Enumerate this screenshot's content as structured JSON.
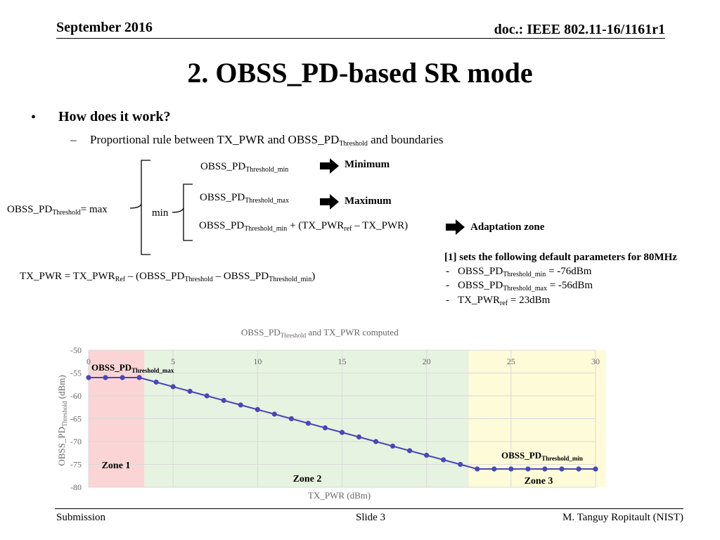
{
  "header": {
    "date": "September 2016",
    "doc": "doc.: IEEE 802.11-16/1161r1"
  },
  "title": "2. OBSS_PD-based SR mode",
  "bullets": {
    "level1": "How does it work?",
    "level2_dash": "–",
    "level2_pre": "Proportional rule between TX_PWR and OBSS_PD",
    "level2_sub": "Threshold",
    "level2_post": " and boundaries"
  },
  "formula": {
    "lhs_base": "OBSS_PD",
    "lhs_sub": "Threshold",
    "lhs_post": "= max",
    "min_label": "min",
    "term_min_base": "OBSS_PD",
    "term_min_sub": "Threshold_min",
    "term_max_base": "OBSS_PD",
    "term_max_sub": "Threshold_max",
    "term_adapt_base": "OBSS_PD",
    "term_adapt_sub": "Threshold_min",
    "term_adapt_mid": " + (TX_PWR",
    "term_adapt_sub2": "ref",
    "term_adapt_post": " – TX_PWR)",
    "label_min": "Minimum",
    "label_max": "Maximum",
    "label_adapt": "Adaptation zone"
  },
  "txpwr_formula": {
    "p1": "TX_PWR = TX_PWR",
    "s1": "Ref",
    "p2": " – (OBSS_PD",
    "s2": "Threshold",
    "p3": " – OBSS_PD",
    "s3": "Threshold_min",
    "p4": ")"
  },
  "defaults": {
    "heading": "[1] sets the following default parameters for 80MHz",
    "items": [
      {
        "dash": "-",
        "base": "OBSS_PD",
        "sub": "Threshold_min",
        "post": " = -76dBm"
      },
      {
        "dash": "-",
        "base": "OBSS_PD",
        "sub": "Threshold_max",
        "post": " = -56dBm"
      },
      {
        "dash": "-",
        "base": "TX_PWR",
        "sub": "ref",
        "post": " = 23dBm"
      }
    ]
  },
  "chart_data": {
    "type": "line",
    "title_base": "OBSS_PD",
    "title_sub": "Threshold",
    "title_post": " and TX_PWR computed",
    "xlabel": "TX_PWR (dBm)",
    "ylabel_base": "OBSS_PD",
    "ylabel_sub": "Threshold",
    "ylabel_post": " (dBm)",
    "xlim": [
      0,
      30
    ],
    "ylim": [
      -80,
      -50
    ],
    "x_ticks": [
      0,
      5,
      10,
      15,
      20,
      25,
      30
    ],
    "y_ticks": [
      -50,
      -55,
      -60,
      -65,
      -70,
      -75,
      -80
    ],
    "x": [
      0,
      1,
      2,
      3,
      4,
      5,
      6,
      7,
      8,
      9,
      10,
      11,
      12,
      13,
      14,
      15,
      16,
      17,
      18,
      19,
      20,
      21,
      22,
      23,
      24,
      25,
      26,
      27,
      28,
      29,
      30
    ],
    "values": [
      -56,
      -56,
      -56,
      -56,
      -57,
      -58,
      -59,
      -60,
      -61,
      -62,
      -63,
      -64,
      -65,
      -66,
      -67,
      -68,
      -69,
      -70,
      -71,
      -72,
      -73,
      -74,
      -75,
      -76,
      -76,
      -76,
      -76,
      -76,
      -76,
      -76,
      -76
    ],
    "zones": [
      {
        "label": "Zone 1",
        "x_start": 0,
        "x_end": 3.3,
        "color": "#fbd5d5"
      },
      {
        "label": "Zone 2",
        "x_start": 3.3,
        "x_end": 22.5,
        "color": "#e6f3e0"
      },
      {
        "label": "Zone 3",
        "x_start": 22.5,
        "x_end": 30.6,
        "color": "#fefbd8"
      }
    ],
    "annotations": [
      {
        "base": "OBSS_PD",
        "sub": "Threshold_max"
      },
      {
        "base": "OBSS_PD",
        "sub": "Threshold_min"
      }
    ],
    "line_color": "#4a46b8",
    "grid": true
  },
  "footer": {
    "left": "Submission",
    "center": "Slide 3",
    "right": "M. Tanguy Ropitault (NIST)"
  }
}
